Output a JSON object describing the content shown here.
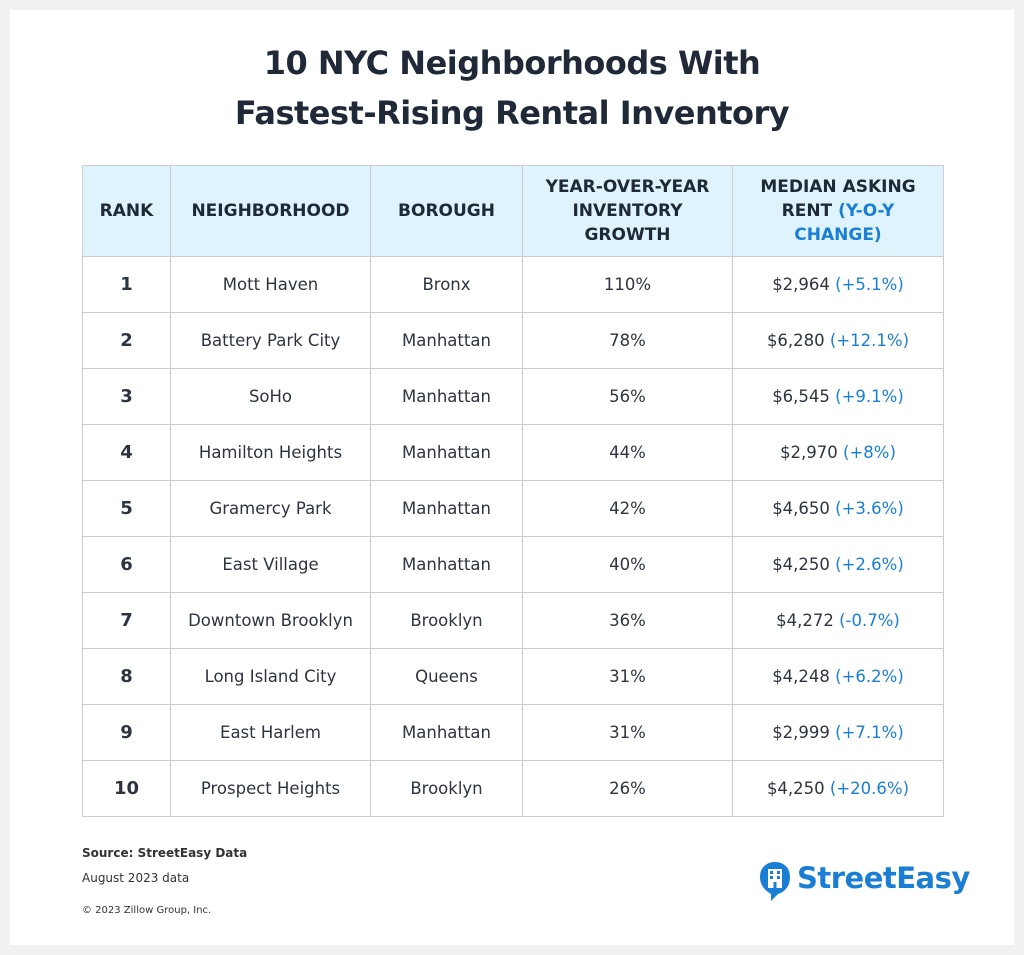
{
  "header": {
    "title_lines": [
      "10 NYC Neighborhoods With",
      "Fastest-Rising Rental Inventory"
    ]
  },
  "table": {
    "columns": [
      "RANK",
      "NEIGHBORHOOD",
      "BOROUGH",
      "YEAR-OVER-YEAR INVENTORY GROWTH",
      {
        "text": "MEDIAN ASKING RENT",
        "highlight": "(Y-O-Y CHANGE)"
      }
    ],
    "rows": [
      [
        "1",
        "Mott Haven",
        "Bronx",
        "110%",
        "$2,964",
        "(+5.1%)"
      ],
      [
        "2",
        "Battery Park City",
        "Manhattan",
        "78%",
        "$6,280",
        "(+12.1%)"
      ],
      [
        "3",
        "SoHo",
        "Manhattan",
        "56%",
        "$6,545",
        "(+9.1%)"
      ],
      [
        "4",
        "Hamilton Heights",
        "Manhattan",
        "44%",
        "$2,970",
        "(+8%)"
      ],
      [
        "5",
        "Gramercy Park",
        "Manhattan",
        "42%",
        "$4,650",
        "(+3.6%)"
      ],
      [
        "6",
        "East Village",
        "Manhattan",
        "40%",
        "$4,250",
        "(+2.6%)"
      ],
      [
        "7",
        "Downtown Brooklyn",
        "Brooklyn",
        "36%",
        "$4,272",
        "(-0.7%)"
      ],
      [
        "8",
        "Long Island City",
        "Queens",
        "31%",
        "$4,248",
        "(+6.2%)"
      ],
      [
        "9",
        "East Harlem",
        "Manhattan",
        "31%",
        "$2,999",
        "(+7.1%)"
      ],
      [
        "10",
        "Prospect Heights",
        "Brooklyn",
        "26%",
        "$4,250",
        "(+20.6%)"
      ]
    ]
  },
  "footer": {
    "source": "Source: StreetEasy Data",
    "date": "August 2023 data",
    "copyright": "© 2023 Zillow Group, Inc.",
    "logo": "StreetEasy"
  }
}
